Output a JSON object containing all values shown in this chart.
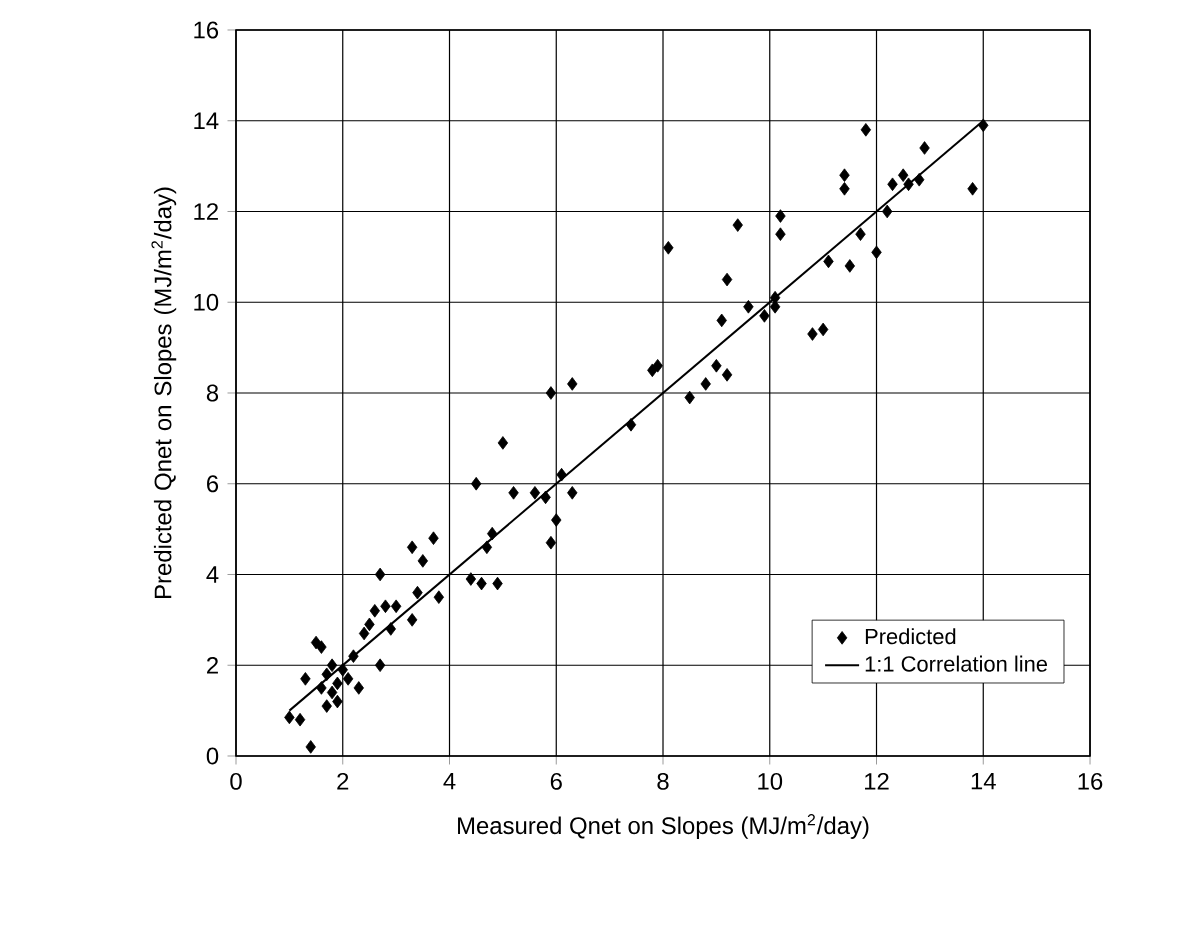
{
  "chart_data": {
    "type": "scatter",
    "xlabel": "Measured Qnet on Slopes (MJ/m$^{2}$/day)",
    "ylabel": "Predicted Qnet on Slopes (MJ/m$^{2}$/day)",
    "xlim": [
      0,
      16
    ],
    "ylim": [
      0,
      16
    ],
    "xticks": [
      0,
      2,
      4,
      6,
      8,
      10,
      12,
      14,
      16
    ],
    "yticks": [
      0,
      2,
      4,
      6,
      8,
      10,
      12,
      14,
      16
    ],
    "grid": true,
    "legend": "bottom right",
    "series": [
      {
        "name": "Predicted",
        "marker": "diamond",
        "color": "#000000",
        "x": [
          1.0,
          1.2,
          1.4,
          1.3,
          1.5,
          1.6,
          1.6,
          1.7,
          1.8,
          1.8,
          1.9,
          1.7,
          1.9,
          2.0,
          2.1,
          2.2,
          2.3,
          2.4,
          2.5,
          2.6,
          2.7,
          2.8,
          2.7,
          2.9,
          3.0,
          3.3,
          3.3,
          3.4,
          3.5,
          3.7,
          3.8,
          4.4,
          4.5,
          4.6,
          4.7,
          4.8,
          4.9,
          5.0,
          5.2,
          5.6,
          5.9,
          5.9,
          6.0,
          6.1,
          6.3,
          6.3,
          7.4,
          7.8,
          7.9,
          8.1,
          8.5,
          8.8,
          9.0,
          9.1,
          9.2,
          9.2,
          9.4,
          9.6,
          9.9,
          10.1,
          10.1,
          10.2,
          10.2,
          10.8,
          11.0,
          11.1,
          11.4,
          11.4,
          11.5,
          11.7,
          11.8,
          12.0,
          12.2,
          12.3,
          12.5,
          12.6,
          12.8,
          12.9,
          13.8,
          14.0,
          5.8
        ],
        "values": [
          0.85,
          0.8,
          0.2,
          1.7,
          2.5,
          2.4,
          1.5,
          1.1,
          1.4,
          2.0,
          1.6,
          1.8,
          1.2,
          1.9,
          1.7,
          2.2,
          1.5,
          2.7,
          2.9,
          3.2,
          2.0,
          3.3,
          4.0,
          2.8,
          3.3,
          3.0,
          4.6,
          3.6,
          4.3,
          4.8,
          3.5,
          3.9,
          6.0,
          3.8,
          4.6,
          4.9,
          3.8,
          6.9,
          5.8,
          5.8,
          8.0,
          4.7,
          5.2,
          6.2,
          5.8,
          8.2,
          7.3,
          8.5,
          8.6,
          11.2,
          7.9,
          8.2,
          8.6,
          9.6,
          8.4,
          10.5,
          11.7,
          9.9,
          9.7,
          10.1,
          9.9,
          11.9,
          11.5,
          9.3,
          9.4,
          10.9,
          12.8,
          12.5,
          10.8,
          11.5,
          13.8,
          11.1,
          12.0,
          12.6,
          12.8,
          12.6,
          12.7,
          13.4,
          12.5,
          13.9,
          5.7
        ]
      },
      {
        "name": "1:1 Correlation line",
        "type": "line",
        "line_style": "solid",
        "color": "#000000",
        "x": [
          1,
          14
        ],
        "values": [
          1,
          14
        ]
      }
    ]
  }
}
